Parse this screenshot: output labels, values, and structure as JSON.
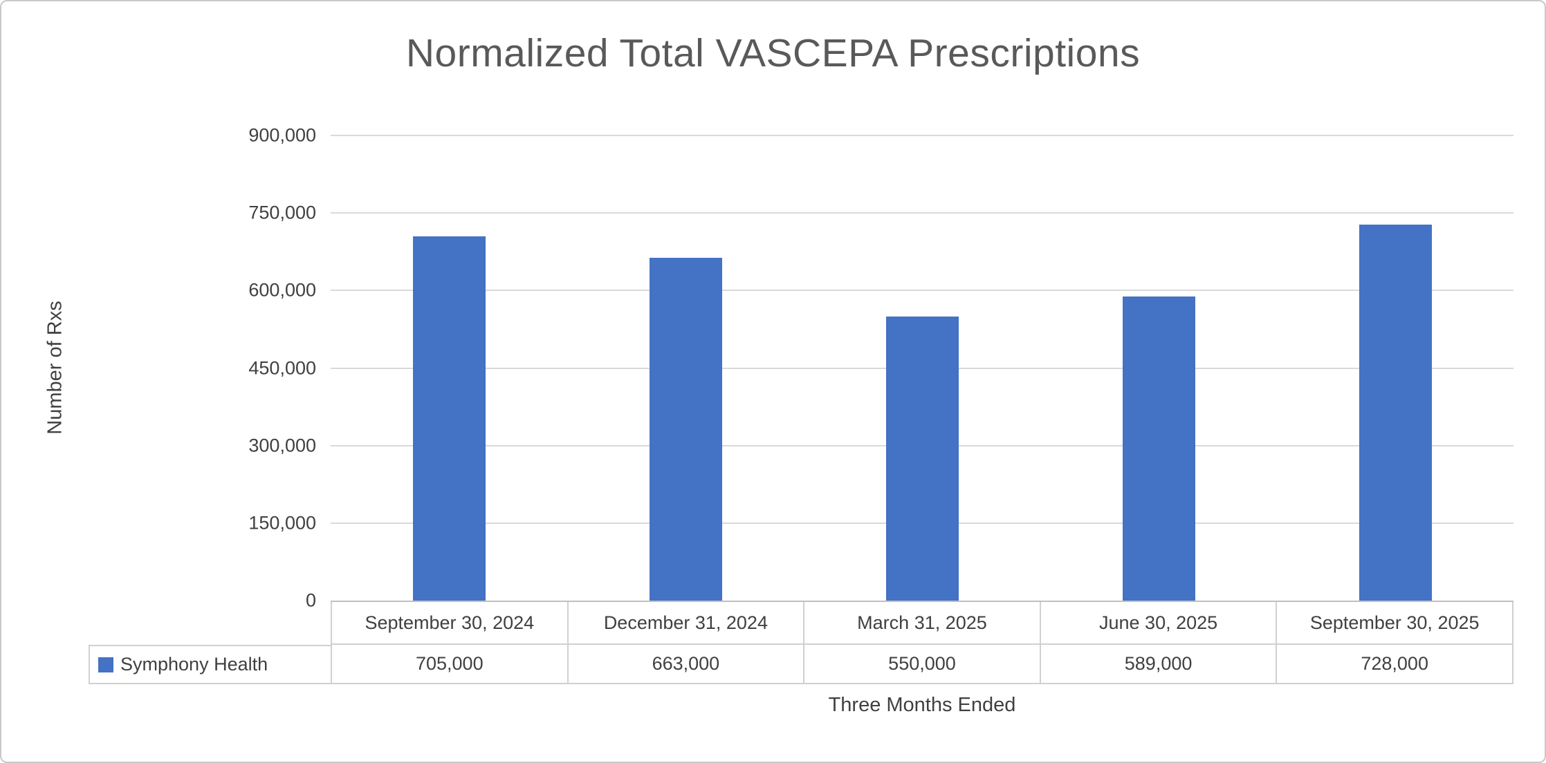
{
  "title": "Normalized Total VASCEPA Prescriptions",
  "legend": {
    "label": "Symphony Health"
  },
  "chart_data": {
    "type": "bar",
    "title": "Normalized Total VASCEPA Prescriptions",
    "xlabel": "Three Months Ended",
    "ylabel": "Number of Rxs",
    "categories": [
      "September 30, 2024",
      "December 31, 2024",
      "March 31, 2025",
      "June 30, 2025",
      "September 30, 2025"
    ],
    "series": [
      {
        "name": "Symphony Health",
        "values": [
          705000,
          663000,
          550000,
          589000,
          728000
        ]
      }
    ],
    "value_labels": [
      "705,000",
      "663,000",
      "550,000",
      "589,000",
      "728,000"
    ],
    "yticks": [
      "0",
      "150,000",
      "300,000",
      "450,000",
      "600,000",
      "750,000",
      "900,000"
    ],
    "ytick_interval": 150000,
    "ylim": [
      0,
      900000
    ],
    "grid": true,
    "legend_position": "bottom-left-table",
    "bar_color": "#4472C4",
    "gridline_color": "#D9D9D9"
  }
}
